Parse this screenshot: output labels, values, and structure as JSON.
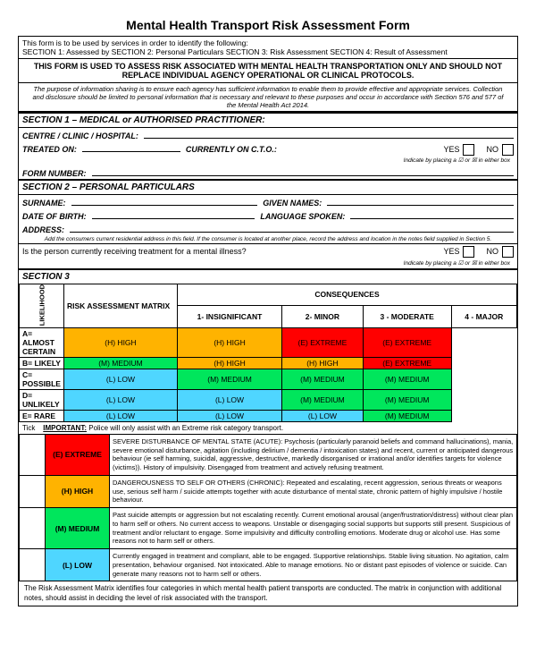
{
  "title": "Mental Health Transport Risk Assessment Form",
  "intro_line1": "This form is to be used by services in order to identify the following:",
  "intro_line2": "SECTION 1: Assessed by SECTION 2: Personal Particulars SECTION 3: Risk Assessment SECTION 4: Result of Assessment",
  "bold_notice": "THIS FORM IS USED TO ASSESS RISK ASSOCIATED WITH MENTAL HEALTH TRANSPORTATION ONLY AND SHOULD NOT REPLACE INDIVIDUAL AGENCY OPERATIONAL OR CLINICAL PROTOCOLS.",
  "purpose": "The purpose of information sharing is to ensure each agency has sufficient information to enable them to provide effective and appropriate services. Collection and disclosure should be limited to personal information that is necessary and relevant to these purposes and occur in accordance with Section 576 and 577 of the Mental Health Act 2014.",
  "section1": {
    "header": "SECTION 1 – MEDICAL or AUTHORISED PRACTITIONER:",
    "centre": "CENTRE / CLINIC / HOSPITAL:",
    "treated_on": "TREATED ON:",
    "cto": "CURRENTLY ON C.T.O.:",
    "yes": "YES",
    "no": "NO",
    "indicate": "Indicate by placing a ☑ or ☒ in either box",
    "form_number": "FORM NUMBER:"
  },
  "section2": {
    "header": "SECTION 2 – PERSONAL PARTICULARS",
    "surname": "SURNAME:",
    "given": "GIVEN NAMES:",
    "dob": "DATE OF BIRTH:",
    "lang": "LANGUAGE SPOKEN:",
    "address": "ADDRESS:",
    "address_note": "Add the consumers current residential address in this field. If the consumer is located at another place, record the address and location in the notes field supplied in Section 5.",
    "question": "Is the person currently receiving treatment for a mental illness?",
    "yes": "YES",
    "no": "NO",
    "indicate": "Indicate by placing a ☑ or ☒ in either box"
  },
  "section3": {
    "header": "SECTION 3",
    "matrix_label": "RISK ASSESSMENT MATRIX",
    "consequences": "CONSEQUENCES",
    "likelihood": "LIKELIHOOD",
    "cols": [
      "1- INSIGNIFICANT",
      "2- MINOR",
      "3 - MODERATE",
      "4 - MAJOR"
    ],
    "rows": [
      {
        "label": "A= ALMOST CERTAIN",
        "cells": [
          {
            "t": "(H) HIGH",
            "c": "#ffb300"
          },
          {
            "t": "(H) HIGH",
            "c": "#ffb300"
          },
          {
            "t": "(E) EXTREME",
            "c": "#ff0000"
          },
          {
            "t": "(E) EXTREME",
            "c": "#ff0000"
          }
        ]
      },
      {
        "label": "B= LIKELY",
        "cells": [
          {
            "t": "(M) MEDIUM",
            "c": "#00e65c"
          },
          {
            "t": "(H) HIGH",
            "c": "#ffb300"
          },
          {
            "t": "(H) HIGH",
            "c": "#ffb300"
          },
          {
            "t": "(E) EXTREME",
            "c": "#ff0000"
          }
        ]
      },
      {
        "label": "C= POSSIBLE",
        "cells": [
          {
            "t": "(L) LOW",
            "c": "#4fd6ff"
          },
          {
            "t": "(M) MEDIUM",
            "c": "#00e65c"
          },
          {
            "t": "(M) MEDIUM",
            "c": "#00e65c"
          },
          {
            "t": "(M) MEDIUM",
            "c": "#00e65c"
          }
        ]
      },
      {
        "label": "D= UNLIKELY",
        "cells": [
          {
            "t": "(L) LOW",
            "c": "#4fd6ff"
          },
          {
            "t": "(L) LOW",
            "c": "#4fd6ff"
          },
          {
            "t": "(M) MEDIUM",
            "c": "#00e65c"
          },
          {
            "t": "(M) MEDIUM",
            "c": "#00e65c"
          }
        ]
      },
      {
        "label": "E= RARE",
        "cells": [
          {
            "t": "(L) LOW",
            "c": "#4fd6ff"
          },
          {
            "t": "(L) LOW",
            "c": "#4fd6ff"
          },
          {
            "t": "(L) LOW",
            "c": "#4fd6ff"
          },
          {
            "t": "(M) MEDIUM",
            "c": "#00e65c"
          }
        ]
      }
    ],
    "tick": "Tick",
    "important": "IMPORTANT:",
    "important_text": "Police will only assist with an Extreme risk category transport.",
    "desc_rows": [
      {
        "label": "(E) EXTREME",
        "c": "#ff0000",
        "desc": "SEVERE DISTURBANCE OF MENTAL STATE (ACUTE): Psychosis (particularly paranoid beliefs and command hallucinations), mania, severe emotional disturbance, agitation (including delirium / dementia / intoxication states) and recent, current or anticipated dangerous behaviour (ie self harming, suicidal, aggressive, destructive, markedly disorganised or irrational and/or identifies targets for violence (victims)). History of impulsivity. Disengaged from treatment and actively refusing treatment."
      },
      {
        "label": "(H) HIGH",
        "c": "#ffb300",
        "desc": "DANGEROUSNESS TO SELF OR OTHERS (CHRONIC): Repeated and escalating, recent aggression, serious threats or weapons use, serious self harm / suicide attempts together with acute disturbance of mental state, chronic pattern of highly impulsive / hostile behaviour."
      },
      {
        "label": "(M) MEDIUM",
        "c": "#00e65c",
        "desc": "Past suicide attempts or aggression but not escalating recently. Current emotional arousal (anger/frustration/distress) without clear plan to harm self or others. No current access to weapons. Unstable or disengaging social supports but supports still present. Suspicious of treatment and/or reluctant to engage. Some impulsivity and difficulty controlling emotions. Moderate drug or alcohol use. Has some reasons not to harm self or others."
      },
      {
        "label": "(L) LOW",
        "c": "#4fd6ff",
        "desc": "Currently engaged in treatment and compliant, able to be engaged. Supportive relationships. Stable living situation. No agitation, calm presentation, behaviour organised. Not intoxicated. Able to manage emotions. No or distant past episodes of violence or suicide. Can generate many reasons not to harm self or others."
      }
    ],
    "footer": "The Risk Assessment Matrix identifies four categories in which mental health patient transports are conducted. The matrix in conjunction with additional notes, should assist in deciding the level of risk associated with the transport."
  },
  "colors": {
    "extreme": "#ff0000",
    "high": "#ffb300",
    "medium": "#00e65c",
    "low": "#4fd6ff"
  }
}
